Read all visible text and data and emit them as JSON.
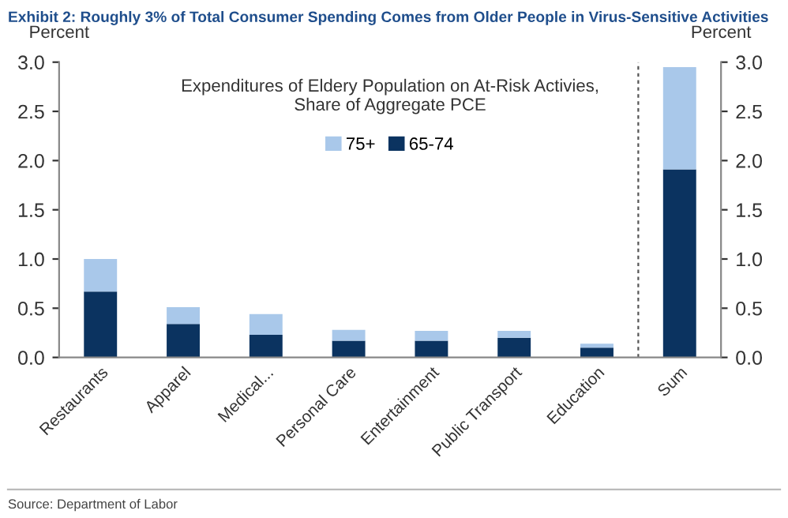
{
  "chart_data": {
    "type": "bar",
    "stacked": true,
    "title": "Exhibit 2: Roughly 3% of Total Consumer Spending Comes from Older People in Virus-Sensitive Activities",
    "subtitle": "Expenditures of Eldery Population on At-Risk Activies,\nShare of Aggregate PCE",
    "ylabel": "Percent",
    "y2label": "Percent",
    "categories": [
      "Restaurants",
      "Apparel",
      "Medical...",
      "Personal Care",
      "Entertainment",
      "Public Transport",
      "Education",
      "Sum"
    ],
    "series": [
      {
        "name": "65-74",
        "color": "#0b3360",
        "values": [
          0.67,
          0.34,
          0.23,
          0.17,
          0.17,
          0.2,
          0.1,
          1.91
        ]
      },
      {
        "name": "75+",
        "color": "#a9c8ea",
        "values": [
          0.33,
          0.17,
          0.21,
          0.11,
          0.1,
          0.07,
          0.04,
          1.04
        ]
      }
    ],
    "ylim": [
      0,
      3.0
    ],
    "yticks": [
      {
        "value": 0,
        "label": "0.0"
      },
      {
        "value": 0.5,
        "label": "0.5"
      },
      {
        "value": 1.0,
        "label": "1.0"
      },
      {
        "value": 1.5,
        "label": "1.5"
      },
      {
        "value": 2.0,
        "label": "2.0"
      },
      {
        "value": 2.5,
        "label": "2.5"
      },
      {
        "value": 3.0,
        "label": "3.0"
      }
    ],
    "y2lim": [
      0,
      3.0
    ],
    "y2ticks": [
      {
        "value": 0,
        "label": "0.0"
      },
      {
        "value": 0.5,
        "label": "0.5"
      },
      {
        "value": 1.0,
        "label": "1.0"
      },
      {
        "value": 1.5,
        "label": "1.5"
      },
      {
        "value": 2.0,
        "label": "2.0"
      },
      {
        "value": 2.5,
        "label": "2.5"
      },
      {
        "value": 3.0,
        "label": "3.0"
      }
    ],
    "grid": false,
    "legend": "top",
    "annotations": [
      "Source: Department of Labor"
    ]
  }
}
